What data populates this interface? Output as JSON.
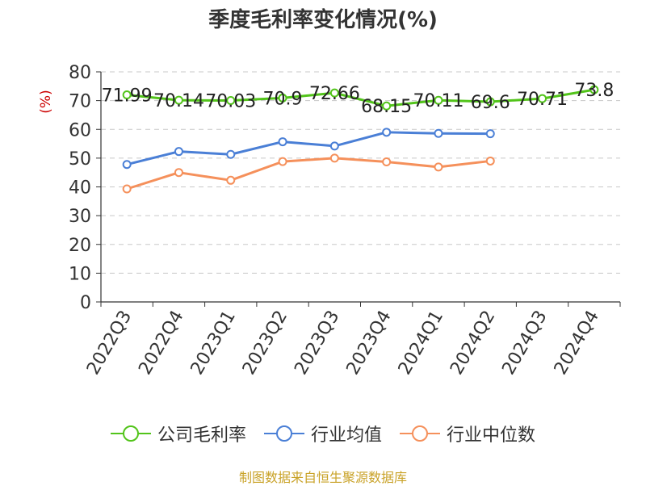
{
  "chart_data": {
    "type": "line",
    "title": "季度毛利率变化情况(%)",
    "ylabel": "(%)",
    "xlabel": "",
    "ylim": [
      0,
      80
    ],
    "yticks": [
      0,
      10,
      20,
      30,
      40,
      50,
      60,
      70,
      80
    ],
    "categories": [
      "2022Q3",
      "2022Q4",
      "2023Q1",
      "2023Q2",
      "2023Q3",
      "2023Q4",
      "2024Q1",
      "2024Q2",
      "2024Q3",
      "2024Q4"
    ],
    "grid": true,
    "legend_position": "bottom",
    "series": [
      {
        "name": "公司毛利率",
        "color": "#52c41a",
        "values": [
          71.99,
          70.14,
          70.03,
          70.9,
          72.66,
          68.15,
          70.11,
          69.6,
          70.71,
          73.8
        ],
        "labels": [
          "71.99",
          "70.14",
          "70.03",
          "70.9",
          "72.66",
          "68.15",
          "70.11",
          "69.6",
          "70.71",
          "73.8"
        ]
      },
      {
        "name": "行业均值",
        "color": "#4a7fd6",
        "values": [
          47.8,
          52.3,
          51.3,
          55.7,
          54.2,
          59.0,
          58.6,
          58.5,
          null,
          null
        ]
      },
      {
        "name": "行业中位数",
        "color": "#f5905b",
        "values": [
          39.3,
          45.0,
          42.3,
          48.8,
          50.0,
          48.7,
          46.9,
          49.0,
          null,
          null
        ]
      }
    ]
  },
  "footer": {
    "source": "制图数据来自恒生聚源数据库"
  }
}
